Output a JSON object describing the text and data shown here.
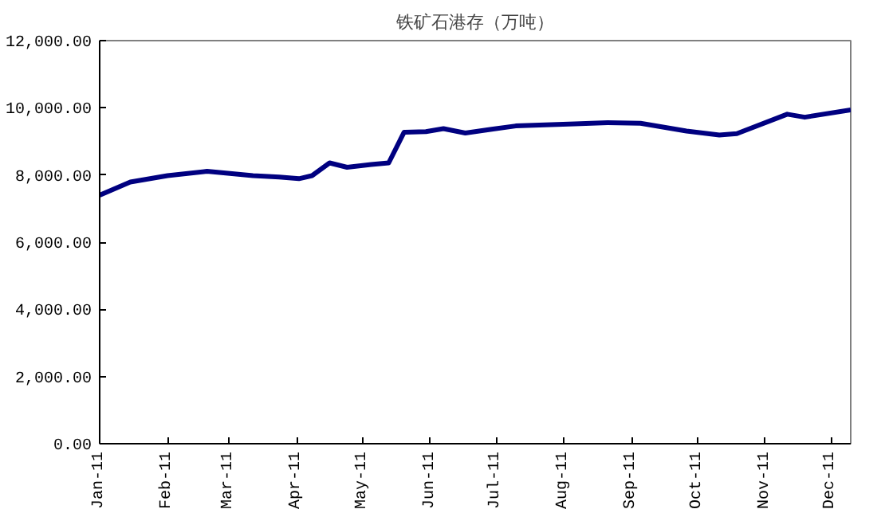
{
  "chart_data": {
    "type": "line",
    "title": "铁矿石港存（万吨）",
    "x": [
      "2011-01-01",
      "2011-01-15",
      "2011-02-01",
      "2011-02-19",
      "2011-03-12",
      "2011-03-24",
      "2011-04-02",
      "2011-04-08",
      "2011-04-16",
      "2011-04-24",
      "2011-05-05",
      "2011-05-13",
      "2011-05-20",
      "2011-05-30",
      "2011-06-07",
      "2011-06-17",
      "2011-06-29",
      "2011-07-10",
      "2011-08-06",
      "2011-08-21",
      "2011-09-05",
      "2011-09-26",
      "2011-10-11",
      "2011-10-19",
      "2011-11-11",
      "2011-11-19",
      "2011-12-10"
    ],
    "series": [
      {
        "color": "#000080",
        "values": [
          7400,
          7790,
          7980,
          8110,
          7980,
          7940,
          7890,
          7980,
          8360,
          8230,
          8310,
          8360,
          9270,
          9290,
          9380,
          9250,
          9360,
          9460,
          9520,
          9560,
          9540,
          9310,
          9190,
          9230,
          9810,
          9720,
          9940
        ]
      }
    ],
    "xlim": [
      "2011-01-01",
      "2011-12-10"
    ],
    "xticks": [
      {
        "value": "2011-01-01",
        "label": "Jan-11"
      },
      {
        "value": "2011-02-01",
        "label": "Feb-11"
      },
      {
        "value": "2011-03-01",
        "label": "Mar-11"
      },
      {
        "value": "2011-04-01",
        "label": "Apr-11"
      },
      {
        "value": "2011-05-01",
        "label": "May-11"
      },
      {
        "value": "2011-06-01",
        "label": "Jun-11"
      },
      {
        "value": "2011-07-01",
        "label": "Jul-11"
      },
      {
        "value": "2011-08-01",
        "label": "Aug-11"
      },
      {
        "value": "2011-09-01",
        "label": "Sep-11"
      },
      {
        "value": "2011-10-01",
        "label": "Oct-11"
      },
      {
        "value": "2011-11-01",
        "label": "Nov-11"
      },
      {
        "value": "2011-12-01",
        "label": "Dec-11"
      }
    ],
    "ylim": [
      0,
      12000
    ],
    "yticks": [
      {
        "value": 0,
        "label": "0.00"
      },
      {
        "value": 2000,
        "label": "2,000.00"
      },
      {
        "value": 4000,
        "label": "4,000.00"
      },
      {
        "value": 6000,
        "label": "6,000.00"
      },
      {
        "value": 8000,
        "label": "8,000.00"
      },
      {
        "value": 10000,
        "label": "10,000.00"
      },
      {
        "value": 12000,
        "label": "12,000.00"
      }
    ],
    "grid": false,
    "marker": "none",
    "line_style": "solid"
  }
}
